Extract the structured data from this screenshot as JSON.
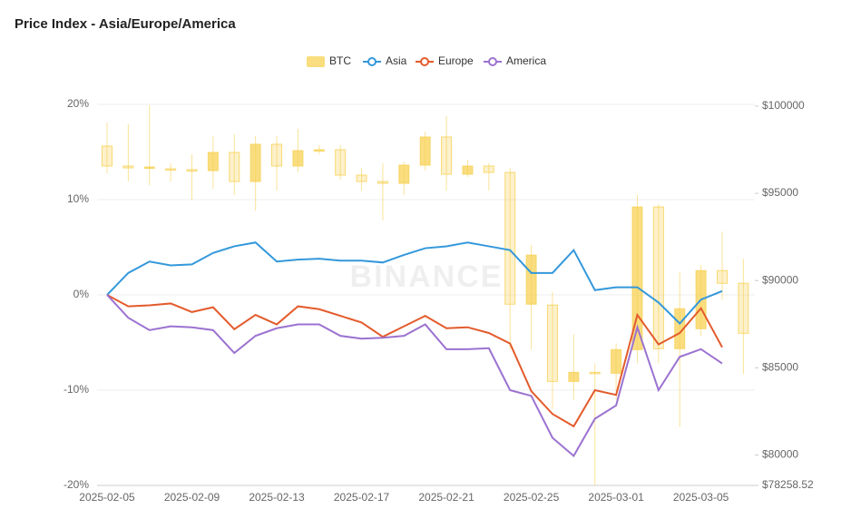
{
  "chart_data": {
    "type": "line",
    "title": "Price Index - Asia/Europe/America",
    "watermark": "BINANCE",
    "categories": [
      "2025-02-05",
      null,
      null,
      null,
      "2025-02-09",
      null,
      null,
      null,
      "2025-02-13",
      null,
      null,
      null,
      "2025-02-17",
      null,
      null,
      null,
      "2025-02-21",
      null,
      null,
      null,
      "2025-02-25",
      null,
      null,
      null,
      "2025-03-01",
      null,
      null,
      null,
      "2025-03-05",
      null,
      null
    ],
    "ylim": [
      -20,
      20
    ],
    "yticks": [
      {
        "value": 20,
        "label": "20%"
      },
      {
        "value": 10,
        "label": "10%"
      },
      {
        "value": 0,
        "label": "0%"
      },
      {
        "value": -10,
        "label": "-10%"
      },
      {
        "value": -20,
        "label": "-20%"
      }
    ],
    "y2lim": [
      78258.52,
      100100
    ],
    "y2ticks": [
      {
        "value": 100000,
        "label": "$100000"
      },
      {
        "value": 95000,
        "label": "$95000"
      },
      {
        "value": 90000,
        "label": "$90000"
      },
      {
        "value": 85000,
        "label": "$85000"
      },
      {
        "value": 80000,
        "label": "$80000"
      },
      {
        "value": 78258.52,
        "label": "$78258.52"
      }
    ],
    "grid": true,
    "legend": "top",
    "series": [
      {
        "name": "BTC",
        "type": "candlestick",
        "axis": "y2",
        "color": "#f7d154",
        "open": [
          97708,
          96563,
          96458,
          96406,
          96354,
          96302,
          97344,
          95677,
          97813,
          96563,
          97448,
          97500,
          96042,
          95677,
          95573,
          96615,
          98229,
          96094,
          96563,
          96198,
          88646,
          88594,
          84219,
          84740,
          84688,
          86042,
          94219,
          86094,
          87240,
          90573,
          89844
        ],
        "high": [
          99063,
          98958,
          100050,
          96719,
          97240,
          98281,
          98385,
          98281,
          98281,
          98698,
          97760,
          97760,
          96458,
          96719,
          96823,
          98542,
          99427,
          96927,
          96719,
          96458,
          92031,
          89323,
          86927,
          85260,
          86406,
          94896,
          94375,
          90469,
          90885,
          92813,
          91250
        ],
        "low": [
          96146,
          95677,
          95469,
          95677,
          94635,
          95260,
          94896,
          94010,
          95156,
          96198,
          97240,
          95781,
          95156,
          93438,
          94896,
          96302,
          95156,
          95938,
          95156,
          86042,
          86042,
          82656,
          83177,
          78258.52,
          83177,
          85260,
          85260,
          81615,
          86823,
          88906,
          84635
        ],
        "close": [
          96563,
          96458,
          96510,
          96354,
          96302,
          97344,
          95677,
          97813,
          96563,
          97448,
          97500,
          96042,
          95677,
          95573,
          96615,
          98229,
          96094,
          96563,
          96198,
          88646,
          91458,
          84219,
          84740,
          84688,
          86042,
          94219,
          86094,
          88385,
          90573,
          89844,
          86979
        ]
      },
      {
        "name": "Asia",
        "color": "#3498db",
        "values": [
          0,
          2.3,
          3.5,
          3.1,
          3.2,
          4.4,
          5.1,
          5.5,
          3.5,
          3.7,
          3.8,
          3.6,
          3.6,
          3.4,
          4.2,
          4.9,
          5.1,
          5.5,
          5.1,
          4.7,
          2.3,
          2.3,
          4.7,
          0.5,
          0.8,
          0.8,
          -0.8,
          -3.0,
          -0.5,
          0.4,
          null
        ]
      },
      {
        "name": "Europe",
        "color": "#e35b2c",
        "values": [
          0,
          -1.2,
          -1.1,
          -0.9,
          -1.8,
          -1.3,
          -3.6,
          -2.1,
          -3.1,
          -1.2,
          -1.5,
          -2.2,
          -2.9,
          -4.4,
          -3.3,
          -2.2,
          -3.5,
          -3.4,
          -4.0,
          -5.1,
          -10.1,
          -12.5,
          -13.8,
          -10.0,
          -10.5,
          -2.1,
          -5.2,
          -4.0,
          -1.4,
          -5.5,
          null
        ]
      },
      {
        "name": "America",
        "color": "#9b72d0",
        "values": [
          0,
          -2.4,
          -3.7,
          -3.3,
          -3.4,
          -3.7,
          -6.1,
          -4.3,
          -3.5,
          -3.1,
          -3.1,
          -4.3,
          -4.6,
          -4.5,
          -4.3,
          -3.1,
          -5.7,
          -5.7,
          -5.6,
          -10.0,
          -10.6,
          -15.0,
          -16.9,
          -13.0,
          -11.6,
          -3.4,
          -10.0,
          -6.5,
          -5.7,
          -7.2,
          null
        ]
      }
    ]
  }
}
